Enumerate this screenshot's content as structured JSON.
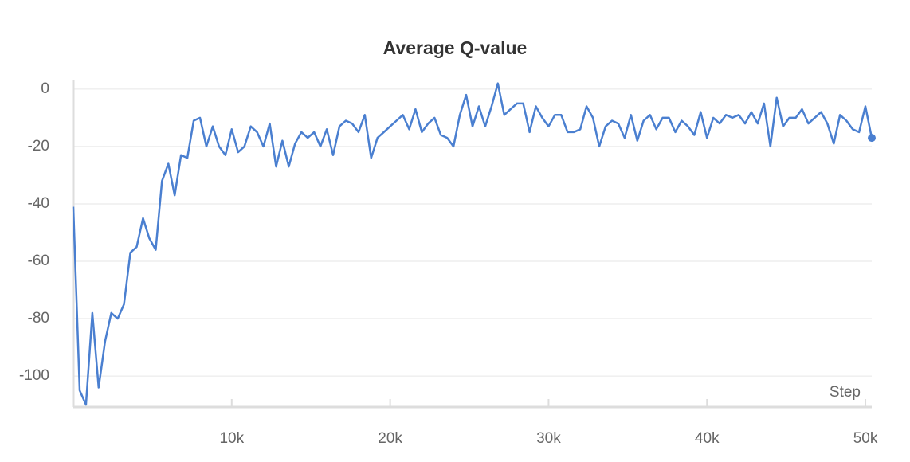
{
  "chart_data": {
    "type": "line",
    "title": "Average Q-value",
    "xlabel": "Step",
    "color": "#4a7fd0",
    "grid": true,
    "x": [
      0,
      400,
      800,
      1200,
      1600,
      2000,
      2400,
      2800,
      3200,
      3600,
      4000,
      4400,
      4800,
      5200,
      5600,
      6000,
      6400,
      6800,
      7200,
      7600,
      8000,
      8400,
      8800,
      9200,
      9600,
      10000,
      10400,
      10800,
      11200,
      11600,
      12000,
      12400,
      12800,
      13200,
      13600,
      14000,
      14400,
      14800,
      15200,
      15600,
      16000,
      16400,
      16800,
      17200,
      17600,
      18000,
      18400,
      18800,
      19200,
      19600,
      20000,
      20400,
      20800,
      21200,
      21600,
      22000,
      22400,
      22800,
      23200,
      23600,
      24000,
      24400,
      24800,
      25200,
      25600,
      26000,
      26400,
      26800,
      27200,
      27600,
      28000,
      28400,
      28800,
      29200,
      29600,
      30000,
      30400,
      30800,
      31200,
      31600,
      32000,
      32400,
      32800,
      33200,
      33600,
      34000,
      34400,
      34800,
      35200,
      35600,
      36000,
      36400,
      36800,
      37200,
      37600,
      38000,
      38400,
      38800,
      39200,
      39600,
      40000,
      40400,
      40800,
      41200,
      41600,
      42000,
      42400,
      42800,
      43200,
      43600,
      44000,
      44400,
      44800,
      45200,
      45600,
      46000,
      46400,
      46800,
      47200,
      47600,
      48000,
      48400,
      48800,
      49200,
      49600,
      50000,
      50400
    ],
    "values": [
      -41,
      -105,
      -110,
      -78,
      -104,
      -88,
      -78,
      -80,
      -75,
      -57,
      -55,
      -45,
      -52,
      -56,
      -32,
      -26,
      -37,
      -23,
      -24,
      -11,
      -10,
      -20,
      -13,
      -20,
      -23,
      -14,
      -22,
      -20,
      -13,
      -15,
      -20,
      -12,
      -27,
      -18,
      -27,
      -19,
      -15,
      -17,
      -15,
      -20,
      -14,
      -23,
      -13,
      -11,
      -12,
      -15,
      -9,
      -24,
      -17,
      -15,
      -13,
      -11,
      -9,
      -14,
      -7,
      -15,
      -12,
      -10,
      -16,
      -17,
      -20,
      -9,
      -2,
      -13,
      -6,
      -13,
      -6,
      2,
      -9,
      -7,
      -5,
      -5,
      -15,
      -6,
      -10,
      -13,
      -9,
      -9,
      -15,
      -15,
      -14,
      -6,
      -10,
      -20,
      -13,
      -11,
      -12,
      -17,
      -9,
      -18,
      -11,
      -9,
      -14,
      -10,
      -10,
      -15,
      -11,
      -13,
      -16,
      -8,
      -17,
      -10,
      -12,
      -9,
      -10,
      -9,
      -12,
      -8,
      -12,
      -5,
      -20,
      -3,
      -13,
      -10,
      -10,
      -7,
      -12,
      -10,
      -8,
      -12,
      -19,
      -9,
      -11,
      -14,
      -15,
      -6,
      -17
    ],
    "xlim": [
      0,
      50400
    ],
    "xticks": [
      {
        "value": 10000,
        "label": "10k"
      },
      {
        "value": 20000,
        "label": "20k"
      },
      {
        "value": 30000,
        "label": "30k"
      },
      {
        "value": 40000,
        "label": "40k"
      },
      {
        "value": 50000,
        "label": "50k"
      }
    ],
    "ylim": [
      -110.8,
      3.3
    ],
    "yticks": [
      0,
      -20,
      -40,
      -60,
      -80,
      -100
    ]
  }
}
